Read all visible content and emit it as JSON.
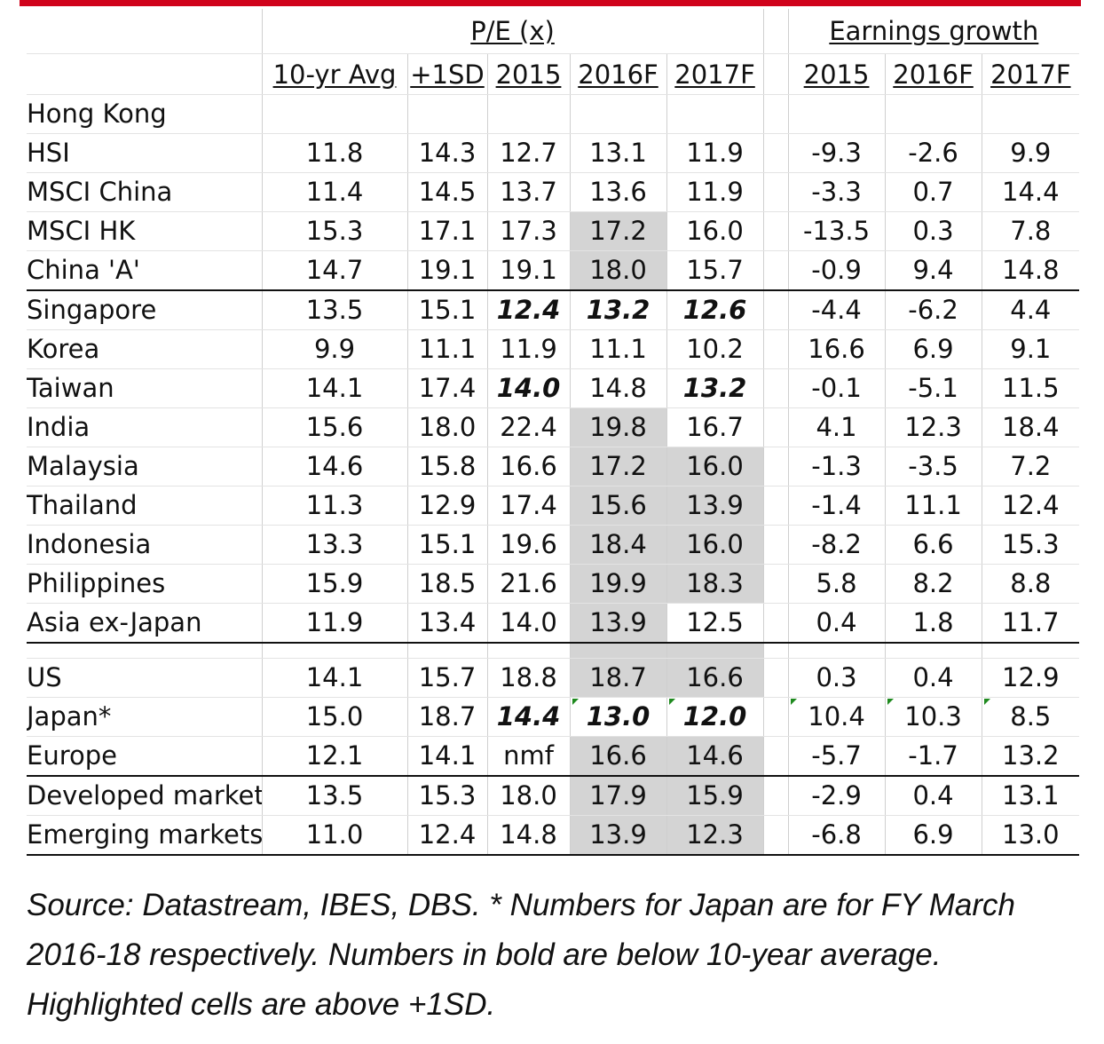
{
  "table": {
    "group_pe": "P/E (x)",
    "group_eg": "Earnings growth",
    "col_headers": [
      "10-yr Avg",
      "+1SD",
      "2015",
      "2016F",
      "2017F",
      "2015",
      "2016F",
      "2017F"
    ],
    "rows": [
      {
        "label": "Hong Kong",
        "indent": false,
        "values": [
          "",
          "",
          "",
          "",
          "",
          "",
          "",
          ""
        ]
      },
      {
        "label": "HSI",
        "indent": true,
        "values": [
          "11.8",
          "14.3",
          "12.7",
          "13.1",
          "11.9",
          "-9.3",
          "-2.6",
          "9.9"
        ]
      },
      {
        "label": "MSCI China",
        "indent": true,
        "values": [
          "11.4",
          "14.5",
          "13.7",
          "13.6",
          "11.9",
          "-3.3",
          "0.7",
          "14.4"
        ]
      },
      {
        "label": "MSCI HK",
        "indent": true,
        "values": [
          "15.3",
          "17.1",
          "17.3",
          "17.2",
          "16.0",
          "-13.5",
          "0.3",
          "7.8"
        ]
      },
      {
        "label": "China 'A'",
        "indent": false,
        "values": [
          "14.7",
          "19.1",
          "19.1",
          "18.0",
          "15.7",
          "-0.9",
          "9.4",
          "14.8"
        ]
      },
      {
        "label": "Singapore",
        "indent": false,
        "values": [
          "13.5",
          "15.1",
          "12.4",
          "13.2",
          "12.6",
          "-4.4",
          "-6.2",
          "4.4"
        ]
      },
      {
        "label": "Korea",
        "indent": false,
        "values": [
          "9.9",
          "11.1",
          "11.9",
          "11.1",
          "10.2",
          "16.6",
          "6.9",
          "9.1"
        ]
      },
      {
        "label": "Taiwan",
        "indent": false,
        "values": [
          "14.1",
          "17.4",
          "14.0",
          "14.8",
          "13.2",
          "-0.1",
          "-5.1",
          "11.5"
        ]
      },
      {
        "label": "India",
        "indent": false,
        "values": [
          "15.6",
          "18.0",
          "22.4",
          "19.8",
          "16.7",
          "4.1",
          "12.3",
          "18.4"
        ]
      },
      {
        "label": "Malaysia",
        "indent": false,
        "values": [
          "14.6",
          "15.8",
          "16.6",
          "17.2",
          "16.0",
          "-1.3",
          "-3.5",
          "7.2"
        ]
      },
      {
        "label": "Thailand",
        "indent": false,
        "values": [
          "11.3",
          "12.9",
          "17.4",
          "15.6",
          "13.9",
          "-1.4",
          "11.1",
          "12.4"
        ]
      },
      {
        "label": "Indonesia",
        "indent": false,
        "values": [
          "13.3",
          "15.1",
          "19.6",
          "18.4",
          "16.0",
          "-8.2",
          "6.6",
          "15.3"
        ]
      },
      {
        "label": "Philippines",
        "indent": false,
        "values": [
          "15.9",
          "18.5",
          "21.6",
          "19.9",
          "18.3",
          "5.8",
          "8.2",
          "8.8"
        ]
      },
      {
        "label": "Asia ex-Japan",
        "indent": false,
        "values": [
          "11.9",
          "13.4",
          "14.0",
          "13.9",
          "12.5",
          "0.4",
          "1.8",
          "11.7"
        ]
      },
      {
        "label": "US",
        "indent": false,
        "values": [
          "14.1",
          "15.7",
          "18.8",
          "18.7",
          "16.6",
          "0.3",
          "0.4",
          "12.9"
        ]
      },
      {
        "label": "Japan*",
        "indent": false,
        "values": [
          "15.0",
          "18.7",
          "14.4",
          "13.0",
          "12.0",
          "10.4",
          "10.3",
          "8.5"
        ]
      },
      {
        "label": "Europe",
        "indent": false,
        "values": [
          "12.1",
          "14.1",
          "nmf",
          "16.6",
          "14.6",
          "-5.7",
          "-1.7",
          "13.2"
        ]
      },
      {
        "label": "Developed markets",
        "indent": false,
        "values": [
          "13.5",
          "15.3",
          "18.0",
          "17.9",
          "15.9",
          "-2.9",
          "0.4",
          "13.1"
        ]
      },
      {
        "label": "Emerging markets",
        "indent": false,
        "values": [
          "11.0",
          "12.4",
          "14.8",
          "13.9",
          "12.3",
          "-6.8",
          "6.9",
          "13.0"
        ]
      }
    ]
  },
  "source_note": "Source: Datastream, IBES, DBS. * Numbers for Japan are for FY March 2016-18 respectively. Numbers in bold are below 10-year average. Highlighted cells are above +1SD.",
  "colors": {
    "accent_bar": "#d0021b",
    "highlight": "#d4d4d4",
    "flag": "#1f8a1f"
  }
}
